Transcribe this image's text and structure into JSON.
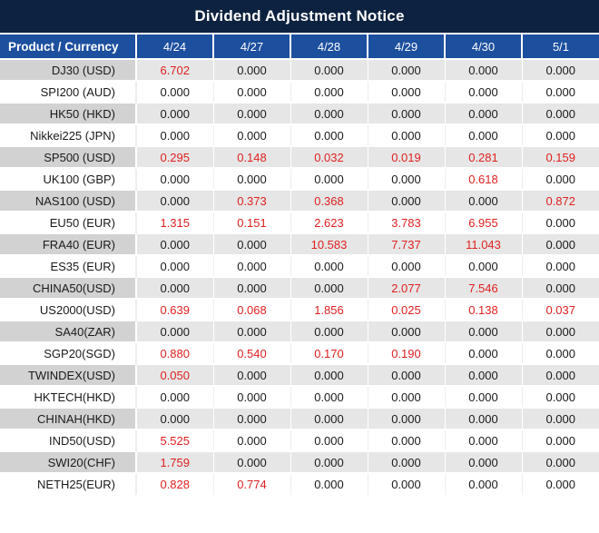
{
  "title": "Dividend Adjustment Notice",
  "colors": {
    "title_bg": "#0d2240",
    "header_bg": "#1c4f9e",
    "header_text": "#ffffff",
    "row_gray": "#e6e6e6",
    "product_gray": "#d2d2d2",
    "value_red": "#e02020",
    "text_black": "#1a1a1a"
  },
  "chart_data": {
    "type": "table",
    "title": "Dividend Adjustment Notice",
    "columns": [
      "Product / Currency",
      "4/24",
      "4/27",
      "4/28",
      "4/29",
      "4/30",
      "5/1"
    ],
    "rows": [
      {
        "product": "DJ30 (USD)",
        "values": [
          "6.702",
          "0.000",
          "0.000",
          "0.000",
          "0.000",
          "0.000"
        ],
        "red_flags": [
          true,
          false,
          false,
          false,
          false,
          false
        ]
      },
      {
        "product": "SPI200 (AUD)",
        "values": [
          "0.000",
          "0.000",
          "0.000",
          "0.000",
          "0.000",
          "0.000"
        ],
        "red_flags": [
          false,
          false,
          false,
          false,
          false,
          false
        ]
      },
      {
        "product": "HK50 (HKD)",
        "values": [
          "0.000",
          "0.000",
          "0.000",
          "0.000",
          "0.000",
          "0.000"
        ],
        "red_flags": [
          false,
          false,
          false,
          false,
          false,
          false
        ]
      },
      {
        "product": "Nikkei225 (JPN)",
        "values": [
          "0.000",
          "0.000",
          "0.000",
          "0.000",
          "0.000",
          "0.000"
        ],
        "red_flags": [
          false,
          false,
          false,
          false,
          false,
          false
        ]
      },
      {
        "product": "SP500 (USD)",
        "values": [
          "0.295",
          "0.148",
          "0.032",
          "0.019",
          "0.281",
          "0.159"
        ],
        "red_flags": [
          true,
          true,
          true,
          true,
          true,
          true
        ]
      },
      {
        "product": "UK100 (GBP)",
        "values": [
          "0.000",
          "0.000",
          "0.000",
          "0.000",
          "0.618",
          "0.000"
        ],
        "red_flags": [
          false,
          false,
          false,
          false,
          true,
          false
        ]
      },
      {
        "product": "NAS100 (USD)",
        "values": [
          "0.000",
          "0.373",
          "0.368",
          "0.000",
          "0.000",
          "0.872"
        ],
        "red_flags": [
          false,
          true,
          true,
          false,
          false,
          true
        ]
      },
      {
        "product": "EU50 (EUR)",
        "values": [
          "1.315",
          "0.151",
          "2.623",
          "3.783",
          "6.955",
          "0.000"
        ],
        "red_flags": [
          true,
          true,
          true,
          true,
          true,
          false
        ]
      },
      {
        "product": "FRA40 (EUR)",
        "values": [
          "0.000",
          "0.000",
          "10.583",
          "7.737",
          "11.043",
          "0.000"
        ],
        "red_flags": [
          false,
          false,
          true,
          true,
          true,
          false
        ]
      },
      {
        "product": "ES35 (EUR)",
        "values": [
          "0.000",
          "0.000",
          "0.000",
          "0.000",
          "0.000",
          "0.000"
        ],
        "red_flags": [
          false,
          false,
          false,
          false,
          false,
          false
        ]
      },
      {
        "product": "CHINA50(USD)",
        "values": [
          "0.000",
          "0.000",
          "0.000",
          "2.077",
          "7.546",
          "0.000"
        ],
        "red_flags": [
          false,
          false,
          false,
          true,
          true,
          false
        ]
      },
      {
        "product": "US2000(USD)",
        "values": [
          "0.639",
          "0.068",
          "1.856",
          "0.025",
          "0.138",
          "0.037"
        ],
        "red_flags": [
          true,
          true,
          true,
          true,
          true,
          true
        ]
      },
      {
        "product": "SA40(ZAR)",
        "values": [
          "0.000",
          "0.000",
          "0.000",
          "0.000",
          "0.000",
          "0.000"
        ],
        "red_flags": [
          false,
          false,
          false,
          false,
          false,
          false
        ]
      },
      {
        "product": "SGP20(SGD)",
        "values": [
          "0.880",
          "0.540",
          "0.170",
          "0.190",
          "0.000",
          "0.000"
        ],
        "red_flags": [
          true,
          true,
          true,
          true,
          false,
          false
        ]
      },
      {
        "product": "TWINDEX(USD)",
        "values": [
          "0.050",
          "0.000",
          "0.000",
          "0.000",
          "0.000",
          "0.000"
        ],
        "red_flags": [
          true,
          false,
          false,
          false,
          false,
          false
        ]
      },
      {
        "product": "HKTECH(HKD)",
        "values": [
          "0.000",
          "0.000",
          "0.000",
          "0.000",
          "0.000",
          "0.000"
        ],
        "red_flags": [
          false,
          false,
          false,
          false,
          false,
          false
        ]
      },
      {
        "product": "CHINAH(HKD)",
        "values": [
          "0.000",
          "0.000",
          "0.000",
          "0.000",
          "0.000",
          "0.000"
        ],
        "red_flags": [
          false,
          false,
          false,
          false,
          false,
          false
        ]
      },
      {
        "product": "IND50(USD)",
        "values": [
          "5.525",
          "0.000",
          "0.000",
          "0.000",
          "0.000",
          "0.000"
        ],
        "red_flags": [
          true,
          false,
          false,
          false,
          false,
          false
        ]
      },
      {
        "product": "SWI20(CHF)",
        "values": [
          "1.759",
          "0.000",
          "0.000",
          "0.000",
          "0.000",
          "0.000"
        ],
        "red_flags": [
          true,
          false,
          false,
          false,
          false,
          false
        ]
      },
      {
        "product": "NETH25(EUR)",
        "values": [
          "0.828",
          "0.774",
          "0.000",
          "0.000",
          "0.000",
          "0.000"
        ],
        "red_flags": [
          true,
          true,
          false,
          false,
          false,
          false
        ]
      }
    ]
  }
}
